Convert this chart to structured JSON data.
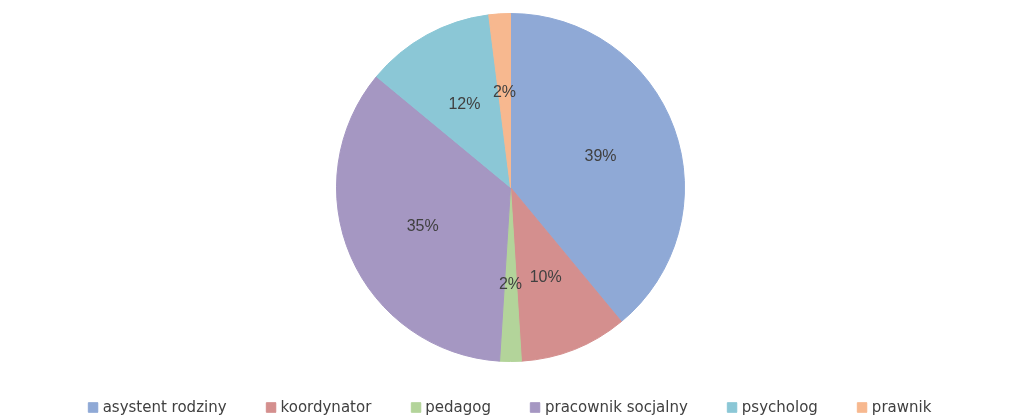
{
  "chart_data": {
    "type": "pie",
    "categories": [
      "asystent rodziny",
      "koordynator",
      "pedagog",
      "pracownik socjalny",
      "psycholog",
      "prawnik"
    ],
    "values": [
      39,
      10,
      2,
      35,
      12,
      2
    ],
    "value_labels": [
      "39%",
      "10%",
      "2%",
      "35%",
      "12%",
      "2%"
    ],
    "colors": [
      "#8fa9d6",
      "#d48f8e",
      "#b3d49a",
      "#a597c2",
      "#8bc7d6",
      "#f7b88f"
    ],
    "legend": "bottom"
  }
}
